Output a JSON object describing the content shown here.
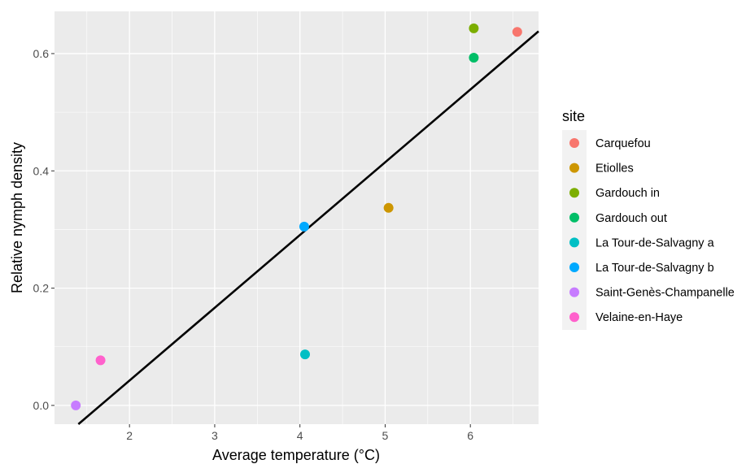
{
  "chart_data": {
    "type": "scatter",
    "xlabel": "Average temperature (°C)",
    "ylabel": "Relative nymph density",
    "xlim": [
      1.12,
      6.8
    ],
    "ylim": [
      -0.032,
      0.672
    ],
    "x_ticks": [
      2,
      3,
      4,
      5,
      6
    ],
    "x_tick_labels": [
      "2",
      "3",
      "4",
      "5",
      "6"
    ],
    "y_ticks": [
      0.0,
      0.2,
      0.4,
      0.6
    ],
    "y_tick_labels": [
      "0.0",
      "0.2",
      "0.4",
      "0.6"
    ],
    "grid": true,
    "panel_background": "#ebebeb",
    "grid_color": "#ffffff",
    "legend": {
      "title": "site",
      "position": "right",
      "background": "#f2f2f2"
    },
    "series": [
      {
        "name": "Carquefou",
        "color": "#F8766D",
        "x": 6.55,
        "y": 0.637
      },
      {
        "name": "Etiolles",
        "color": "#CD9600",
        "x": 5.04,
        "y": 0.337
      },
      {
        "name": "Gardouch in",
        "color": "#7CAE00",
        "x": 6.04,
        "y": 0.643
      },
      {
        "name": "Gardouch out",
        "color": "#00BE67",
        "x": 6.04,
        "y": 0.593
      },
      {
        "name": "La Tour-de-Salvagny a",
        "color": "#00BFC4",
        "x": 4.06,
        "y": 0.087
      },
      {
        "name": "La Tour-de-Salvagny b",
        "color": "#00A9FF",
        "x": 4.05,
        "y": 0.305
      },
      {
        "name": "Saint-Genès-Champanelle",
        "color": "#C77CFF",
        "x": 1.37,
        "y": 0.0
      },
      {
        "name": "Velaine-en-Haye",
        "color": "#FF61CC",
        "x": 1.66,
        "y": 0.077
      }
    ],
    "fit_line": {
      "type": "linear",
      "color": "#000000",
      "points": [
        [
          1.4,
          -0.032
        ],
        [
          6.8,
          0.638
        ]
      ]
    }
  }
}
